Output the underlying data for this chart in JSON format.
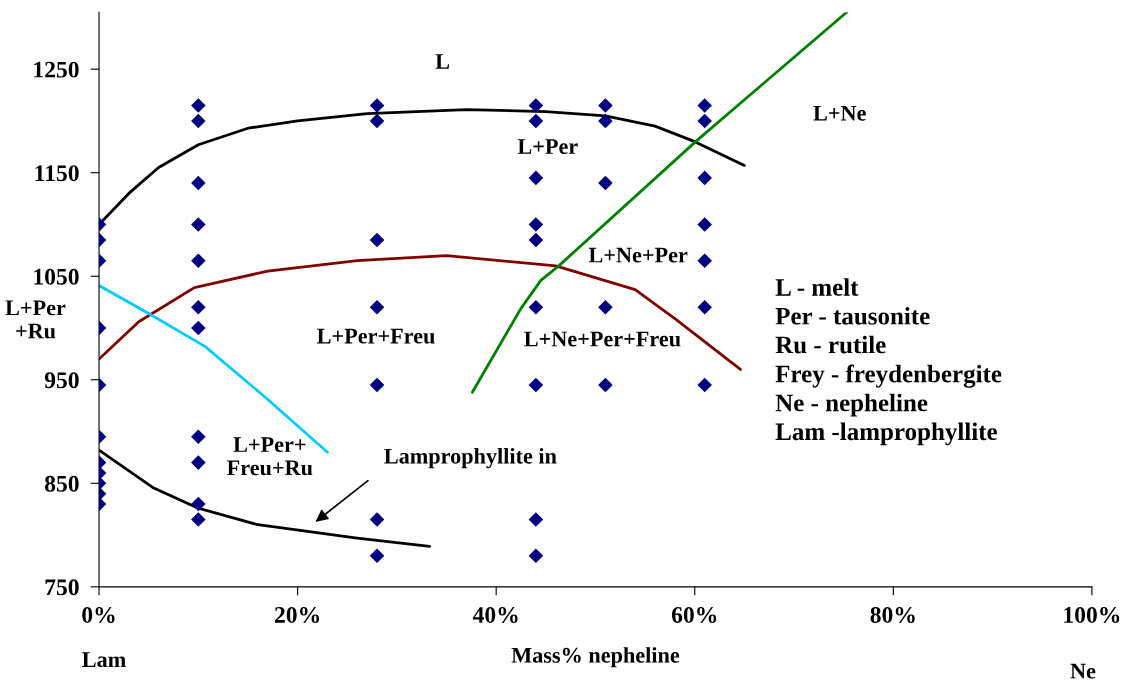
{
  "chart_data": {
    "type": "line",
    "xlabel": "Mass% nepheline",
    "xlim": [
      0,
      100
    ],
    "ylim": [
      750,
      1305
    ],
    "xticks": [
      {
        "value": 0,
        "label": "0%"
      },
      {
        "value": 20,
        "label": "20%"
      },
      {
        "value": 40,
        "label": "40%"
      },
      {
        "value": 60,
        "label": "60%"
      },
      {
        "value": 80,
        "label": "80%"
      },
      {
        "value": 100,
        "label": "100%"
      }
    ],
    "yticks": [
      750,
      850,
      950,
      1050,
      1150,
      1250
    ],
    "grid": false,
    "legend": false,
    "series": [
      {
        "type": "scatter",
        "marker": "diamond",
        "color": "#000080",
        "x": [
          0,
          0,
          0,
          0,
          0,
          0,
          0,
          0,
          0,
          0,
          0,
          10,
          10,
          10,
          10,
          10,
          10,
          10,
          10,
          10,
          10,
          10,
          28,
          28,
          28,
          28,
          28,
          28,
          28,
          44,
          44,
          44,
          44,
          44,
          44,
          44,
          44,
          44,
          51,
          51,
          51,
          51,
          51,
          61,
          61,
          61,
          61,
          61,
          61,
          61
        ],
        "values": [
          1100,
          1085,
          1065,
          1000,
          945,
          895,
          870,
          860,
          850,
          840,
          830,
          1215,
          1200,
          1140,
          1100,
          1065,
          1020,
          1000,
          895,
          870,
          830,
          815,
          1215,
          1200,
          1085,
          1020,
          945,
          815,
          780,
          1215,
          1200,
          1145,
          1100,
          1085,
          1020,
          945,
          815,
          780,
          1215,
          1200,
          1140,
          1020,
          945,
          1215,
          1200,
          1145,
          1100,
          1065,
          1020,
          945
        ]
      },
      {
        "color": "#000000",
        "x": [
          0,
          3,
          6,
          10,
          15,
          20,
          27,
          37,
          45,
          51,
          56,
          60,
          65
        ],
        "values": [
          1100,
          1130,
          1155,
          1177,
          1193,
          1200,
          1207,
          1211,
          1209,
          1205,
          1195,
          1180,
          1157
        ]
      },
      {
        "color": "#800000",
        "x": [
          0,
          4,
          9.6,
          17,
          26,
          35,
          46,
          54,
          58,
          64.6
        ],
        "values": [
          970,
          1006,
          1039,
          1055,
          1065,
          1070,
          1060,
          1037,
          1009,
          960
        ]
      },
      {
        "color": "#00ccff",
        "x": [
          0,
          5,
          10.7,
          17,
          23
        ],
        "values": [
          1041,
          1014,
          982,
          931,
          880
        ]
      },
      {
        "color": "#008000",
        "x": [
          37.6,
          42.5,
          44.5,
          46.3,
          60.2,
          75.3
        ],
        "values": [
          938,
          1019,
          1046,
          1060,
          1181,
          1305
        ]
      },
      {
        "color": "#000000",
        "x": [
          0,
          5.4,
          10,
          16,
          26,
          33.3
        ],
        "values": [
          882,
          846,
          826,
          810,
          797,
          789
        ]
      }
    ],
    "annotations": [
      "L - melt\nPer - tausonite\nRu - rutile\nFrey - freydenbergite\nNe - nepheline\nLam -lamprophyllite",
      "Lamprophyllite in",
      "L",
      "L+Ne",
      "L+Per",
      "L+Ne+Per",
      "L+Per\n+Ru",
      "L+Per+Freu",
      "L+Ne+Per+Freu",
      "L+Per+\nFreu+Ru",
      "Lam",
      "Ne"
    ]
  }
}
